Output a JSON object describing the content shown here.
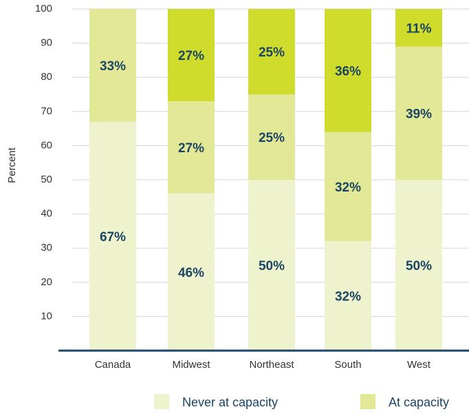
{
  "chart_data": {
    "type": "stacked_bar",
    "categories": [
      "Canada",
      "Midwest",
      "Northeast",
      "South",
      "West"
    ],
    "y_label": "Percent",
    "series": [
      {
        "name": "Never at capacity",
        "color": "#eef3cd",
        "values": [
          67,
          46,
          50,
          32,
          50
        ],
        "value_labels": [
          "67%",
          "46%",
          "50%",
          "32%",
          "50%"
        ]
      },
      {
        "name": "At capacity",
        "color": "#e3e897",
        "values": [
          33,
          27,
          25,
          32,
          39
        ],
        "value_labels": [
          "33%",
          "27%",
          "25%",
          "32%",
          "39%"
        ]
      },
      {
        "color": "#cfdc2b",
        "values": [
          null,
          27,
          25,
          36,
          11
        ],
        "value_labels": [
          null,
          "27%",
          "25%",
          "36%",
          "11%"
        ]
      }
    ],
    "ylim": [
      0,
      100
    ],
    "yticks": [
      10,
      20,
      30,
      40,
      50,
      60,
      70,
      80,
      90,
      100
    ],
    "grid": true
  }
}
